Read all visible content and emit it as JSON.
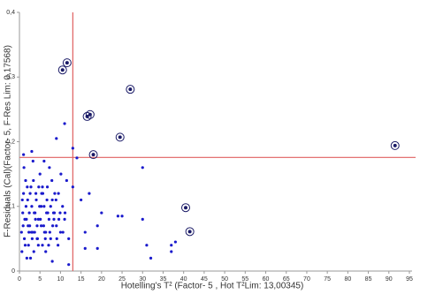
{
  "chart_data": {
    "type": "scatter",
    "x_label": "Hotelling's T² (Factor- 5 , Hot T²Lim: 13,00345)",
    "y_label": "F-Residuals (Cal)(Factor- 5, F-Res Lim: 0,17568)",
    "xlim": [
      0,
      95
    ],
    "ylim": [
      0,
      0.4
    ],
    "xticks": [
      0,
      5,
      10,
      15,
      20,
      25,
      30,
      35,
      40,
      45,
      50,
      55,
      60,
      65,
      70,
      75,
      80,
      85,
      90,
      95
    ],
    "yticks": [
      {
        "value": 0,
        "label": "0"
      },
      {
        "value": 0.1,
        "label": "0,1"
      },
      {
        "value": 0.2,
        "label": "0,2"
      },
      {
        "value": 0.3,
        "label": "0,3"
      },
      {
        "value": 0.4,
        "label": "0,4"
      }
    ],
    "limits": {
      "x": 13.00345,
      "y": 0.17568,
      "color": "#e06060"
    },
    "series": [
      {
        "color": "#1a1acc",
        "marker": "dot",
        "x": [
          0.5,
          0.8,
          1.0,
          1.2,
          1.5,
          1.7,
          2.0,
          2.2,
          2.5,
          2.8,
          3.0,
          3.2,
          3.5,
          3.8,
          4.0,
          4.3,
          4.6,
          5.0,
          5.3,
          5.6,
          6.0,
          6.4,
          6.8,
          7.2,
          7.6,
          8.0,
          8.5,
          9.0,
          9.5,
          10.0,
          10.5,
          11.0,
          11.5,
          12.0,
          0.6,
          1.1,
          1.6,
          2.1,
          2.6,
          3.1,
          3.6,
          4.1,
          4.6,
          5.1,
          5.6,
          6.1,
          6.6,
          7.1,
          7.6,
          8.1,
          8.6,
          9.1,
          9.6,
          10.1,
          10.6,
          11.1,
          0.9,
          1.4,
          1.9,
          2.4,
          2.9,
          3.4,
          3.9,
          4.4,
          4.9,
          5.4,
          5.9,
          6.4,
          6.9,
          7.4,
          7.9,
          8.4,
          8.9,
          9.4,
          9.9,
          0.7,
          1.3,
          2.3,
          3.3,
          4.3,
          5.3,
          6.3,
          7.3,
          8.3,
          2.7,
          4.7,
          6.7,
          1.8,
          3.7,
          5.7,
          13,
          15,
          16,
          19,
          20,
          24,
          25,
          30,
          30,
          31,
          32,
          37,
          37,
          38,
          17,
          14,
          9,
          11,
          13,
          3,
          1,
          6,
          16,
          19,
          12,
          8
        ],
        "y": [
          0.06,
          0.09,
          0.12,
          0.05,
          0.14,
          0.08,
          0.11,
          0.04,
          0.07,
          0.13,
          0.1,
          0.06,
          0.03,
          0.09,
          0.12,
          0.05,
          0.08,
          0.15,
          0.07,
          0.04,
          0.1,
          0.06,
          0.13,
          0.08,
          0.05,
          0.11,
          0.09,
          0.07,
          0.12,
          0.06,
          0.1,
          0.08,
          0.14,
          0.05,
          0.03,
          0.16,
          0.1,
          0.07,
          0.12,
          0.05,
          0.09,
          0.11,
          0.04,
          0.08,
          0.13,
          0.06,
          0.09,
          0.04,
          0.1,
          0.07,
          0.12,
          0.05,
          0.08,
          0.15,
          0.06,
          0.09,
          0.07,
          0.04,
          0.13,
          0.09,
          0.06,
          0.14,
          0.08,
          0.05,
          0.1,
          0.12,
          0.07,
          0.03,
          0.09,
          0.06,
          0.14,
          0.08,
          0.11,
          0.04,
          0.09,
          0.11,
          0.08,
          0.06,
          0.17,
          0.07,
          0.1,
          0.05,
          0.16,
          0.09,
          0.02,
          0.13,
          0.11,
          0.02,
          0.06,
          0.12,
          0.13,
          0.11,
          0.06,
          0.07,
          0.09,
          0.085,
          0.085,
          0.16,
          0.08,
          0.04,
          0.02,
          0.04,
          0.03,
          0.045,
          0.12,
          0.175,
          0.205,
          0.228,
          0.19,
          0.185,
          0.18,
          0.17,
          0.035,
          0.035,
          0.01,
          0.015
        ]
      },
      {
        "color": "#1a1a66",
        "marker": "ring",
        "x": [
          11.6,
          10.5,
          17.2,
          16.5,
          27,
          24.5,
          18,
          91.5,
          40.5,
          41.5
        ],
        "y": [
          0.322,
          0.311,
          0.242,
          0.239,
          0.281,
          0.207,
          0.18,
          0.194,
          0.098,
          0.061
        ]
      }
    ]
  }
}
